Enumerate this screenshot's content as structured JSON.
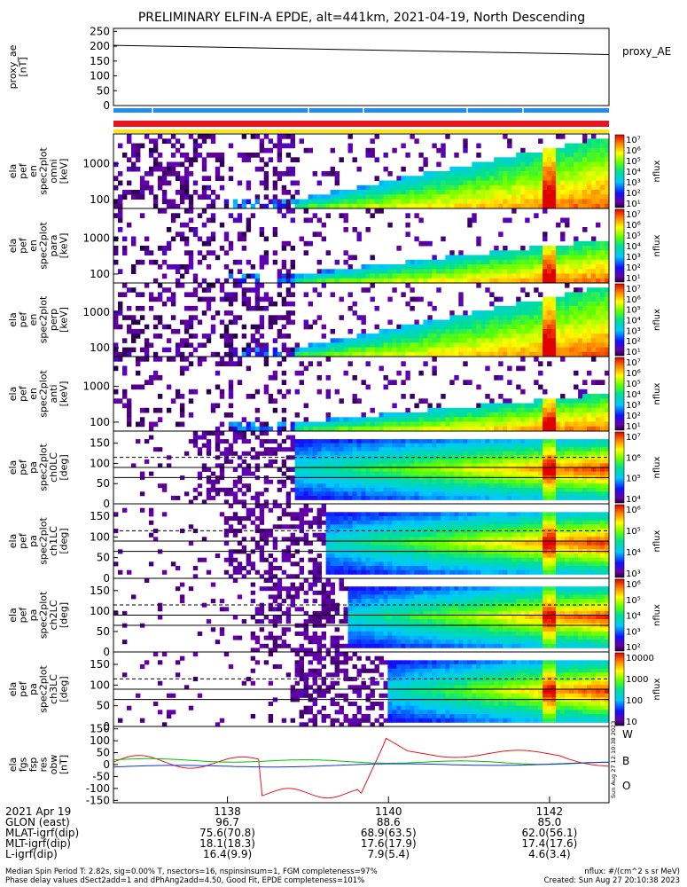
{
  "title": "PRELIMINARY ELFIN-A EPDE, alt=441km, 2021-04-19, North Descending",
  "colors": {
    "proxy_line": "#000000",
    "bar_blue": "#1e8cf0",
    "bar_red": "#e8141e",
    "bar_yellow": "#f5e614",
    "ae_trace": "#e8141e",
    "b_trace": "#00c000",
    "o_trace": "#1432d2"
  },
  "chart_data": [
    {
      "id": "proxy-ae",
      "type": "line",
      "ylabel": [
        "proxy_ae",
        "[nT]"
      ],
      "yticks": [
        "250",
        "200",
        "150",
        "100",
        "50",
        "0"
      ],
      "ylim": [
        0,
        260
      ],
      "legend": "proxy_AE",
      "x": [
        0,
        1
      ],
      "values": [
        203,
        172
      ]
    },
    {
      "id": "spec-omni",
      "type": "heatmap",
      "ylabel": [
        "ela",
        "pef",
        "en",
        "spec2plot",
        "omni",
        "[keV]"
      ],
      "yticks": [
        "1000",
        "100"
      ],
      "colorbar": {
        "label": "nflux",
        "ticks": [
          "10⁷",
          "10⁶",
          "10⁵",
          "10⁴",
          "10³",
          "10²",
          "10¹"
        ]
      }
    },
    {
      "id": "spec-para",
      "type": "heatmap",
      "ylabel": [
        "ela",
        "pef",
        "en",
        "spec2plot",
        "para",
        "[keV]"
      ],
      "yticks": [
        "1000",
        "100"
      ],
      "colorbar": {
        "label": "nflux",
        "ticks": [
          "10⁷",
          "10⁶",
          "10⁵",
          "10⁴",
          "10³",
          "10²",
          "10¹"
        ]
      }
    },
    {
      "id": "spec-perp",
      "type": "heatmap",
      "ylabel": [
        "ela",
        "pef",
        "en",
        "spec2plot",
        "perp",
        "[keV]"
      ],
      "yticks": [
        "1000",
        "100"
      ],
      "colorbar": {
        "label": "nflux",
        "ticks": [
          "10⁷",
          "10⁶",
          "10⁵",
          "10⁴",
          "10³",
          "10²",
          "10¹"
        ]
      }
    },
    {
      "id": "spec-anti",
      "type": "heatmap",
      "ylabel": [
        "ela",
        "pef",
        "en",
        "spec2plot",
        "anti",
        "[keV]"
      ],
      "yticks": [
        "1000",
        "100"
      ],
      "colorbar": {
        "label": "nflux",
        "ticks": [
          "10⁷",
          "10⁶",
          "10⁵",
          "10⁴",
          "10³",
          "10²",
          "10¹"
        ]
      }
    },
    {
      "id": "pa-ch0",
      "type": "heatmap",
      "ylabel": [
        "ela",
        "pef",
        "pa",
        "spec2plot",
        "ch0LC",
        "[deg]"
      ],
      "yticks": [
        "150",
        "100",
        "50",
        "0"
      ],
      "colorbar": {
        "label": "nflux",
        "ticks": [
          "10⁷",
          "10⁶",
          "10⁵",
          "10⁴"
        ]
      }
    },
    {
      "id": "pa-ch1",
      "type": "heatmap",
      "ylabel": [
        "ela",
        "pef",
        "pa",
        "spec2plot",
        "ch1LC",
        "[deg]"
      ],
      "yticks": [
        "150",
        "100",
        "50",
        "0"
      ],
      "colorbar": {
        "label": "nflux",
        "ticks": [
          "10⁶",
          "10⁵",
          "10⁴",
          "10³"
        ]
      }
    },
    {
      "id": "pa-ch2",
      "type": "heatmap",
      "ylabel": [
        "ela",
        "pef",
        "pa",
        "spec2plot",
        "ch2LC",
        "[deg]"
      ],
      "yticks": [
        "150",
        "100",
        "50",
        "0"
      ],
      "colorbar": {
        "label": "nflux",
        "ticks": [
          "10⁶",
          "10⁵",
          "10⁴",
          "10³",
          "10²"
        ]
      }
    },
    {
      "id": "pa-ch3",
      "type": "heatmap",
      "ylabel": [
        "ela",
        "pef",
        "pa",
        "spec2plot",
        "ch3LC",
        "[deg]"
      ],
      "yticks": [
        "150",
        "100",
        "50",
        "0"
      ],
      "colorbar": {
        "label": "nflux",
        "ticks": [
          "10000",
          "1000",
          "100",
          "10"
        ]
      }
    },
    {
      "id": "fgs",
      "type": "line",
      "ylabel": [
        "ela",
        "fgs",
        "fsp",
        "res",
        "obw",
        "[nT]"
      ],
      "yticks": [
        "150",
        "100",
        "50",
        "0",
        "-50",
        "-100",
        "-150"
      ],
      "ylim": [
        -160,
        160
      ],
      "legend": [
        "W",
        "B",
        "O"
      ]
    }
  ],
  "xaxis": {
    "tick_labels": [
      "1138",
      "1140",
      "1142"
    ],
    "rows": [
      {
        "label": "2021 Apr 19",
        "values": [
          "1138",
          "1140",
          "1142"
        ]
      },
      {
        "label": "GLON (east)",
        "values": [
          "96.7",
          "88.6",
          "85.0"
        ]
      },
      {
        "label": "MLAT-igrf(dip)",
        "values": [
          "75.6(70.8)",
          "68.9(63.5)",
          "62.0(56.1)"
        ]
      },
      {
        "label": "MLT-igrf(dip)",
        "values": [
          "18.1(18.3)",
          "17.6(17.9)",
          "17.4(17.6)"
        ]
      },
      {
        "label": "L-igrf(dip)",
        "values": [
          "16.4(9.9)",
          "7.9(5.4)",
          "4.6(3.4)"
        ]
      }
    ]
  },
  "footer": {
    "line1": "Median Spin Period T: 2.82s, sig=0.00% T, nsectors=16, nspinsinsum=1, FGM completeness=97%",
    "line2": "Phase delay values dSect2add=1 and dPhAng2add=4.50, Good Fit, EPDE completeness=101%",
    "units": "nflux: #/(cm^2 s sr MeV)",
    "created": "Created: Sun Aug 27 20:10:38 2023"
  },
  "side_stamp": "Sun Aug 27 12:10:38 2023"
}
